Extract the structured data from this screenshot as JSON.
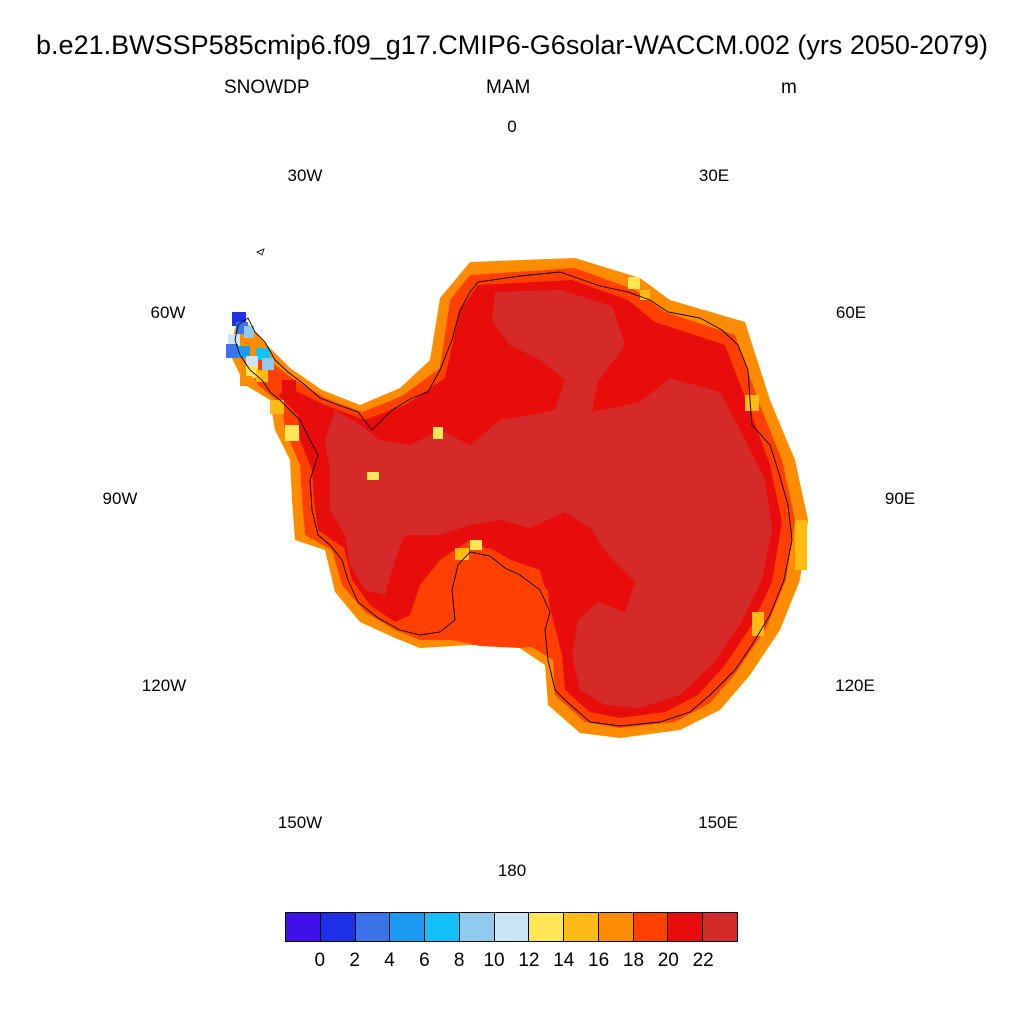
{
  "header": {
    "title": "b.e21.BWSSP585cmip6.f09_g17.CMIP6-G6solar-WACCM.002 (yrs 2050-2079)",
    "variable": "SNOWDP",
    "season": "MAM",
    "units": "m"
  },
  "map": {
    "projection": "south-polar-stereographic",
    "longitude_labels": [
      "0",
      "30E",
      "60E",
      "90E",
      "120E",
      "150E",
      "180",
      "150W",
      "120W",
      "90W",
      "60W",
      "30W"
    ],
    "coastline_color": "#000000",
    "dominant_level_colors": {
      "interior": "#d42a2a",
      "ring": "#e80c0c",
      "edge": "#ff4000",
      "margin": "#ff8c00"
    }
  },
  "colorbar": {
    "colors": [
      "#4010ec",
      "#1c30e8",
      "#3a74e8",
      "#1c9af2",
      "#14c0f8",
      "#90caec",
      "#c8e6f6",
      "#ffe654",
      "#ffbc10",
      "#ff8c00",
      "#ff4000",
      "#e80c0c",
      "#d42a2a"
    ],
    "tick_labels": [
      "0",
      "2",
      "4",
      "6",
      "8",
      "10",
      "12",
      "14",
      "16",
      "18",
      "20",
      "22"
    ]
  }
}
